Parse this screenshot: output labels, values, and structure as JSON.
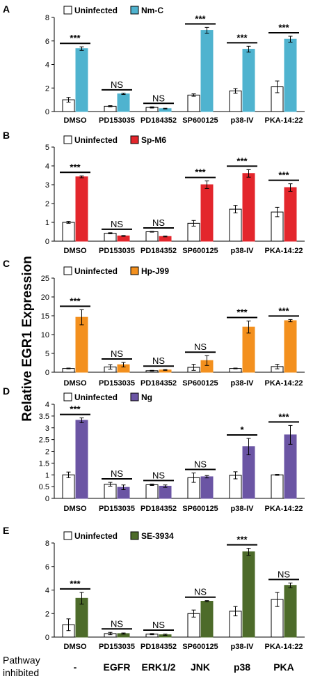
{
  "figure": {
    "y_axis_label": "Relative EGR1 Expression",
    "pathway_label": "Pathway inhibited",
    "pathways": [
      "-",
      "EGFR",
      "ERK1/2",
      "JNK",
      "p38",
      "PKA"
    ]
  },
  "colors": {
    "uninfected": "#ffffff",
    "nm_c": "#4fb3cf",
    "sp_m6": "#e3262c",
    "hp_j99": "#f3901e",
    "ng": "#6b55a4",
    "se_3934": "#4d6b2a"
  },
  "chart_data": [
    {
      "panel": "A",
      "type": "bar",
      "categories": [
        "DMSO",
        "PD153035",
        "PD184352",
        "SP600125",
        "p38-IV",
        "PKA-14:22"
      ],
      "ylim": [
        0,
        8
      ],
      "yticks": [
        0,
        2,
        4,
        6,
        8
      ],
      "legend": "top-left",
      "series": [
        {
          "name": "Uninfected",
          "color": "#ffffff",
          "values": [
            1.0,
            0.45,
            0.35,
            1.4,
            1.75,
            2.1
          ],
          "errors": [
            0.2,
            0.05,
            0.05,
            0.1,
            0.2,
            0.5
          ]
        },
        {
          "name": "Nm-C",
          "color": "#4fb3cf",
          "values": [
            5.35,
            1.5,
            0.25,
            6.9,
            5.3,
            6.15
          ],
          "errors": [
            0.15,
            0.05,
            0.03,
            0.25,
            0.25,
            0.25
          ]
        }
      ],
      "significance": [
        "***",
        "NS",
        "NS",
        "***",
        "***",
        "***"
      ]
    },
    {
      "panel": "B",
      "type": "bar",
      "categories": [
        "DMSO",
        "PD153035",
        "PD184352",
        "SP600125",
        "p38-IV",
        "PKA-14:22"
      ],
      "ylim": [
        0,
        5
      ],
      "yticks": [
        0,
        1,
        2,
        3,
        4,
        5
      ],
      "legend": "top-left",
      "series": [
        {
          "name": "Uninfected",
          "color": "#ffffff",
          "values": [
            1.0,
            0.42,
            0.5,
            0.95,
            1.7,
            1.55
          ],
          "errors": [
            0.05,
            0.03,
            0.02,
            0.15,
            0.2,
            0.25
          ]
        },
        {
          "name": "Sp-M6",
          "color": "#e3262c",
          "values": [
            3.42,
            0.28,
            0.25,
            3.0,
            3.6,
            2.85
          ],
          "errors": [
            0.05,
            0.02,
            0.02,
            0.2,
            0.2,
            0.2
          ]
        }
      ],
      "significance": [
        "***",
        "NS",
        "NS",
        "***",
        "***",
        "***"
      ]
    },
    {
      "panel": "C",
      "type": "bar",
      "categories": [
        "DMSO",
        "PD153035",
        "PD184352",
        "SP600125",
        "p38-IV",
        "PKA-14:22"
      ],
      "ylim": [
        0,
        25
      ],
      "yticks": [
        0,
        5,
        10,
        15,
        20,
        25
      ],
      "legend": "top-left",
      "series": [
        {
          "name": "Uninfected",
          "color": "#ffffff",
          "values": [
            1.0,
            1.4,
            0.4,
            1.3,
            1.0,
            1.5
          ],
          "errors": [
            0.1,
            0.6,
            0.1,
            0.8,
            0.1,
            0.6
          ]
        },
        {
          "name": "Hp-J99",
          "color": "#f3901e",
          "values": [
            14.6,
            2.0,
            0.6,
            3.1,
            12.0,
            13.7
          ],
          "errors": [
            2.0,
            0.6,
            0.1,
            1.3,
            1.6,
            0.3
          ]
        }
      ],
      "significance": [
        "***",
        "NS",
        "NS",
        "NS",
        "***",
        "***"
      ]
    },
    {
      "panel": "D",
      "type": "bar",
      "categories": [
        "DMSO",
        "PD153035",
        "PD184352",
        "SP600125",
        "p38-IV",
        "PKA-14:22"
      ],
      "ylim": [
        0,
        4
      ],
      "yticks": [
        0,
        0.5,
        1,
        1.5,
        2,
        2.5,
        3,
        3.5,
        4
      ],
      "legend": "top-left",
      "series": [
        {
          "name": "Uninfected",
          "color": "#ffffff",
          "values": [
            1.0,
            0.6,
            0.58,
            0.88,
            0.98,
            1.0
          ],
          "errors": [
            0.12,
            0.08,
            0.03,
            0.2,
            0.15,
            0.02
          ]
        },
        {
          "name": "Ng",
          "color": "#6b55a4",
          "values": [
            3.32,
            0.47,
            0.52,
            0.92,
            2.2,
            2.7
          ],
          "errors": [
            0.1,
            0.1,
            0.05,
            0.05,
            0.35,
            0.4
          ]
        }
      ],
      "significance": [
        "***",
        "NS",
        "NS",
        "NS",
        "*",
        "***"
      ]
    },
    {
      "panel": "E",
      "type": "bar",
      "categories": [
        "DMSO",
        "PD153035",
        "PD184352",
        "SP600125",
        "p38-IV",
        "PKA-14:22"
      ],
      "ylim": [
        0,
        8
      ],
      "yticks": [
        0,
        2,
        4,
        6,
        8
      ],
      "legend": "top-left",
      "series": [
        {
          "name": "Uninfected",
          "color": "#ffffff",
          "values": [
            1.05,
            0.3,
            0.25,
            2.0,
            2.2,
            3.2
          ],
          "errors": [
            0.5,
            0.1,
            0.05,
            0.3,
            0.4,
            0.6
          ]
        },
        {
          "name": "SE-3934",
          "color": "#4d6b2a",
          "values": [
            3.3,
            0.3,
            0.2,
            3.05,
            7.25,
            4.4
          ],
          "errors": [
            0.5,
            0.05,
            0.05,
            0.05,
            0.3,
            0.2
          ]
        }
      ],
      "significance": [
        "***",
        "NS",
        "NS",
        "NS",
        "***",
        "NS"
      ]
    }
  ]
}
